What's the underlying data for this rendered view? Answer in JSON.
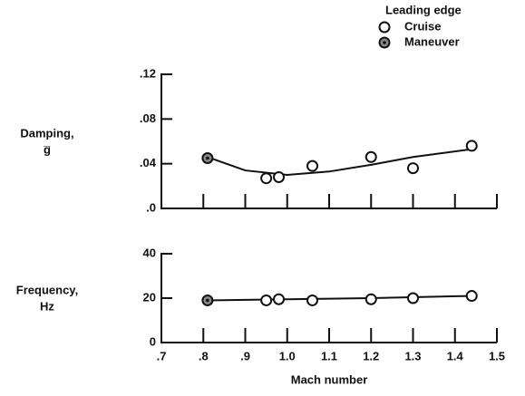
{
  "chart_data": [
    {
      "type": "scatter",
      "ylabel": [
        "Damping,",
        "g̅"
      ],
      "legend_title": "Leading edge",
      "legend": "top-right",
      "xlim": [
        0.7,
        1.5
      ],
      "xticks": [
        {
          "value": 0.7,
          "label": ".7"
        },
        {
          "value": 0.8,
          "label": ".8"
        },
        {
          "value": 0.9,
          "label": ".9"
        },
        {
          "value": 1,
          "label": "1.0"
        },
        1.1,
        1.2,
        1.3,
        1.4,
        1.5
      ],
      "ylim": [
        0,
        0.12
      ],
      "yticks": [
        {
          "value": 0,
          "label": ".0"
        },
        {
          "value": 0.04,
          "label": ".04"
        },
        {
          "value": 0.08,
          "label": ".08"
        },
        {
          "value": 0.12,
          "label": ".12"
        }
      ],
      "series": [
        {
          "name": "Cruise",
          "color": "#111",
          "x": [
            0.95,
            0.98,
            1.06,
            1.2,
            1.3,
            1.44
          ],
          "values": [
            0.027,
            0.028,
            0.038,
            0.046,
            0.036,
            0.056
          ]
        },
        {
          "name": "Maneuver",
          "color": "#111",
          "x": [
            0.81
          ],
          "values": [
            0.045
          ]
        }
      ],
      "curve": {
        "x": [
          0.81,
          0.9,
          1.0,
          1.1,
          1.2,
          1.3,
          1.44
        ],
        "values": [
          0.046,
          0.034,
          0.03,
          0.033,
          0.039,
          0.046,
          0.053
        ]
      }
    },
    {
      "type": "scatter",
      "ylabel": [
        "Frequency,",
        "Hz"
      ],
      "xlabel": "Mach number",
      "xlim": [
        0.7,
        1.5
      ],
      "xticks": [
        {
          "value": 0.7,
          "label": ".7"
        },
        {
          "value": 0.8,
          "label": ".8"
        },
        {
          "value": 0.9,
          "label": ".9"
        },
        {
          "value": 1,
          "label": "1.0"
        },
        1.1,
        1.2,
        1.3,
        1.4,
        1.5
      ],
      "ylim": [
        0,
        40
      ],
      "yticks": [
        0,
        20,
        40
      ],
      "series": [
        {
          "name": "Cruise",
          "color": "#111",
          "x": [
            0.95,
            0.98,
            1.06,
            1.2,
            1.3,
            1.44
          ],
          "values": [
            19,
            19.5,
            19,
            19.5,
            20,
            21
          ]
        },
        {
          "name": "Maneuver",
          "color": "#111",
          "x": [
            0.81
          ],
          "values": [
            19
          ]
        }
      ],
      "curve": {
        "x": [
          0.81,
          1.0,
          1.2,
          1.44
        ],
        "values": [
          19,
          19.5,
          20,
          21
        ]
      }
    }
  ]
}
